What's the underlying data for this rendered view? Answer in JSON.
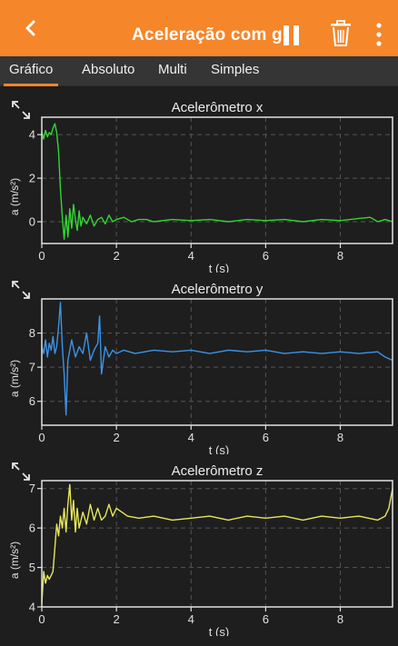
{
  "header": {
    "title": "Aceleração com g",
    "back_icon": "chevron-left-icon",
    "pause_icon": "pause-icon",
    "delete_icon": "trash-icon",
    "menu_icon": "more-vertical-icon",
    "bar_color": "#f5862a"
  },
  "tabs": [
    {
      "label": "Gráfico",
      "active": true
    },
    {
      "label": "Absoluto",
      "active": false
    },
    {
      "label": "Multi",
      "active": false
    },
    {
      "label": "Simples",
      "active": false
    }
  ],
  "chart_data": [
    {
      "type": "line",
      "title": "Acelerômetro x",
      "xlabel": "t (s)",
      "ylabel": "a (m/s²)",
      "xlim": [
        0,
        9.4
      ],
      "ylim": [
        -1,
        4.8
      ],
      "xticks": [
        0,
        2,
        4,
        6,
        8
      ],
      "yticks": [
        0,
        2,
        4
      ],
      "grid": true,
      "color": "#33d633",
      "x": [
        0,
        0.05,
        0.1,
        0.15,
        0.2,
        0.25,
        0.3,
        0.35,
        0.4,
        0.45,
        0.5,
        0.55,
        0.6,
        0.65,
        0.7,
        0.75,
        0.8,
        0.85,
        0.9,
        0.95,
        1.0,
        1.05,
        1.1,
        1.2,
        1.3,
        1.4,
        1.5,
        1.6,
        1.7,
        1.8,
        1.9,
        2.0,
        2.2,
        2.4,
        2.6,
        2.8,
        3.0,
        3.5,
        4.0,
        4.5,
        5.0,
        5.5,
        6.0,
        6.5,
        7.0,
        7.5,
        8.0,
        8.5,
        8.8,
        9.0,
        9.2,
        9.4
      ],
      "y": [
        4.1,
        3.8,
        4.2,
        3.9,
        4.1,
        4.0,
        4.3,
        4.5,
        4.1,
        3.2,
        1.5,
        0.2,
        -0.8,
        0.3,
        -0.7,
        0.6,
        -0.3,
        0.8,
        0.1,
        -0.4,
        0.5,
        -0.2,
        0.2,
        -0.1,
        0.3,
        -0.2,
        0.1,
        0.2,
        -0.1,
        0.3,
        0.0,
        0.1,
        0.2,
        0.0,
        0.1,
        0.1,
        0.0,
        0.1,
        0.05,
        0.1,
        0.0,
        0.1,
        0.05,
        0.1,
        0.0,
        0.1,
        0.05,
        0.15,
        0.2,
        0.0,
        0.1,
        0.0
      ]
    },
    {
      "type": "line",
      "title": "Acelerômetro y",
      "xlabel": "t (s)",
      "ylabel": "a (m/s²)",
      "xlim": [
        0,
        9.4
      ],
      "ylim": [
        5.3,
        9.0
      ],
      "xticks": [
        0,
        2,
        4,
        6,
        8
      ],
      "yticks": [
        6,
        7,
        8
      ],
      "grid": true,
      "color": "#3c93e6",
      "x": [
        0,
        0.05,
        0.1,
        0.15,
        0.2,
        0.25,
        0.3,
        0.35,
        0.4,
        0.45,
        0.5,
        0.55,
        0.6,
        0.65,
        0.7,
        0.75,
        0.8,
        0.9,
        1.0,
        1.1,
        1.2,
        1.3,
        1.4,
        1.5,
        1.55,
        1.6,
        1.7,
        1.8,
        1.9,
        2.0,
        2.2,
        2.5,
        3.0,
        3.5,
        4.0,
        4.5,
        5.0,
        5.5,
        6.0,
        6.5,
        7.0,
        7.5,
        8.0,
        8.5,
        9.0,
        9.2,
        9.4
      ],
      "y": [
        7.6,
        7.4,
        7.8,
        7.3,
        7.7,
        7.5,
        7.9,
        7.4,
        7.6,
        8.2,
        8.9,
        7.6,
        6.8,
        5.6,
        7.2,
        7.5,
        7.8,
        7.3,
        7.6,
        7.4,
        8.0,
        7.2,
        7.5,
        7.7,
        8.5,
        6.8,
        7.6,
        7.3,
        7.5,
        7.4,
        7.5,
        7.4,
        7.5,
        7.45,
        7.5,
        7.4,
        7.5,
        7.45,
        7.5,
        7.4,
        7.45,
        7.4,
        7.45,
        7.4,
        7.45,
        7.3,
        7.2
      ]
    },
    {
      "type": "line",
      "title": "Acelerômetro z",
      "xlabel": "t (s)",
      "ylabel": "a (m/s²)",
      "xlim": [
        0,
        9.4
      ],
      "ylim": [
        4.0,
        7.2
      ],
      "xticks": [
        0,
        2,
        4,
        6,
        8
      ],
      "yticks": [
        4,
        5,
        6,
        7
      ],
      "grid": true,
      "color": "#e6e65a",
      "x": [
        0,
        0.05,
        0.1,
        0.15,
        0.2,
        0.25,
        0.3,
        0.35,
        0.4,
        0.45,
        0.5,
        0.55,
        0.6,
        0.65,
        0.7,
        0.75,
        0.8,
        0.85,
        0.9,
        0.95,
        1.0,
        1.1,
        1.2,
        1.3,
        1.4,
        1.5,
        1.6,
        1.7,
        1.8,
        1.9,
        2.0,
        2.3,
        2.6,
        3.0,
        3.5,
        4.0,
        4.5,
        5.0,
        5.5,
        6.0,
        6.5,
        7.0,
        7.5,
        8.0,
        8.5,
        9.0,
        9.2,
        9.3,
        9.4
      ],
      "y": [
        4.1,
        4.9,
        4.6,
        4.8,
        4.7,
        4.8,
        4.9,
        5.5,
        6.1,
        5.8,
        6.3,
        6.0,
        6.5,
        5.9,
        6.6,
        7.1,
        6.2,
        6.7,
        5.9,
        6.5,
        6.0,
        6.4,
        6.1,
        6.6,
        6.2,
        6.5,
        6.2,
        6.3,
        6.6,
        6.3,
        6.5,
        6.3,
        6.25,
        6.3,
        6.2,
        6.25,
        6.3,
        6.2,
        6.3,
        6.25,
        6.3,
        6.2,
        6.3,
        6.25,
        6.3,
        6.2,
        6.3,
        6.5,
        7.0
      ]
    }
  ]
}
